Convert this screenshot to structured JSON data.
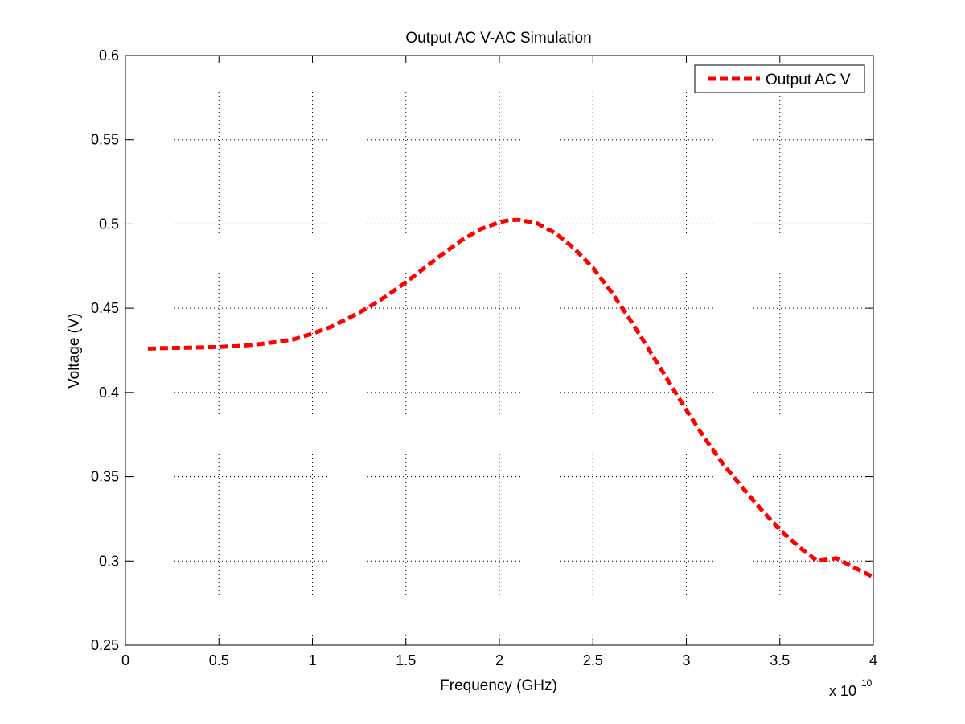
{
  "chart_data": {
    "type": "line",
    "title": "Output AC V-AC Simulation",
    "xlabel": "Frequency (GHz)",
    "ylabel": "Voltage (V)",
    "xlim": [
      0,
      4
    ],
    "ylim": [
      0.25,
      0.6
    ],
    "x_multiplier_label": "x 10",
    "x_multiplier_exponent": "10",
    "x_ticks": [
      "0",
      "0.5",
      "1",
      "1.5",
      "2",
      "2.5",
      "3",
      "3.5",
      "4"
    ],
    "y_ticks": [
      "0.25",
      "0.3",
      "0.35",
      "0.4",
      "0.45",
      "0.5",
      "0.55",
      "0.6"
    ],
    "grid": true,
    "legend_position": "top-right",
    "series": [
      {
        "name": "Output AC V",
        "color": "#ff0000",
        "line_style": "dashed",
        "x": [
          0.12,
          0.2,
          0.3,
          0.4,
          0.5,
          0.6,
          0.7,
          0.8,
          0.9,
          1.0,
          1.1,
          1.2,
          1.3,
          1.4,
          1.5,
          1.6,
          1.7,
          1.8,
          1.9,
          2.0,
          2.05,
          2.1,
          2.2,
          2.3,
          2.4,
          2.5,
          2.6,
          2.7,
          2.8,
          2.9,
          3.0,
          3.1,
          3.2,
          3.3,
          3.4,
          3.5,
          3.6,
          3.7,
          3.8,
          3.9,
          4.0
        ],
        "y": [
          0.426,
          0.4263,
          0.4265,
          0.4267,
          0.427,
          0.4275,
          0.4285,
          0.4298,
          0.4315,
          0.435,
          0.439,
          0.4445,
          0.4505,
          0.4575,
          0.4655,
          0.474,
          0.4825,
          0.4905,
          0.497,
          0.501,
          0.5023,
          0.5025,
          0.5005,
          0.4945,
          0.4855,
          0.474,
          0.4595,
          0.443,
          0.4255,
          0.4075,
          0.3895,
          0.3725,
          0.357,
          0.3435,
          0.3305,
          0.3185,
          0.3085,
          0.3,
          0.3017,
          0.296,
          0.2905
        ]
      }
    ]
  }
}
